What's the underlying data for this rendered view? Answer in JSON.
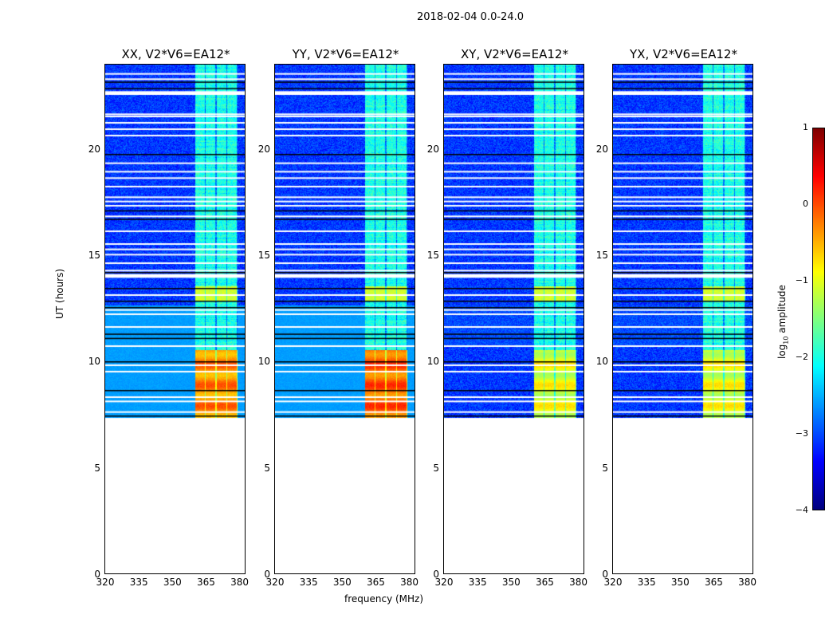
{
  "chart_data": {
    "type": "heatmap",
    "suptitle": "2018-02-04 0.0-24.0",
    "xlabel": "frequency (MHz)",
    "ylabel": "UT (hours)",
    "xlim": [
      320,
      383
    ],
    "ylim": [
      0,
      24
    ],
    "xticks": [
      320,
      335,
      350,
      365,
      380
    ],
    "yticks": [
      0,
      5,
      10,
      15,
      20
    ],
    "panels": [
      {
        "title": "XX, V2*V6=EA12*",
        "strong_level": 0.1
      },
      {
        "title": "YY, V2*V6=EA12*",
        "strong_level": 0.3
      },
      {
        "title": "XY, V2*V6=EA12*",
        "strong_level": -0.6
      },
      {
        "title": "YX, V2*V6=EA12*",
        "strong_level": -0.6
      }
    ],
    "data_start_hour": 7.4,
    "data_end_hour": 24,
    "rfi_band_mhz": [
      360,
      379
    ],
    "colorbar": {
      "label": "log10 amplitude",
      "label_base": "log",
      "label_sub": "10",
      "label_rest": " amplitude",
      "range": [
        -4,
        1
      ],
      "ticks": [
        "1",
        "0",
        "−1",
        "−2",
        "−3",
        "−4"
      ],
      "colormap": "jet"
    },
    "flagged_hours_white": [
      23.6,
      23.35,
      22.65,
      22.7,
      22.75,
      21.7,
      21.6,
      21.3,
      21.0,
      20.7,
      19.4,
      19.0,
      18.7,
      18.3,
      17.8,
      17.6,
      17.4,
      16.9,
      16.2,
      15.6,
      15.35,
      15.1,
      14.7,
      14.35,
      14.05,
      14.1,
      14.15,
      13.2,
      12.5,
      12.3,
      11.7,
      10.8,
      9.9,
      9.6,
      8.4,
      8.2,
      7.7
    ],
    "flagged_hours_black": [
      23.2,
      22.9,
      19.8,
      17.15,
      16.75,
      14.25,
      13.5,
      12.9,
      12.6,
      11.35,
      11.15,
      10.05,
      8.7,
      7.5
    ]
  }
}
